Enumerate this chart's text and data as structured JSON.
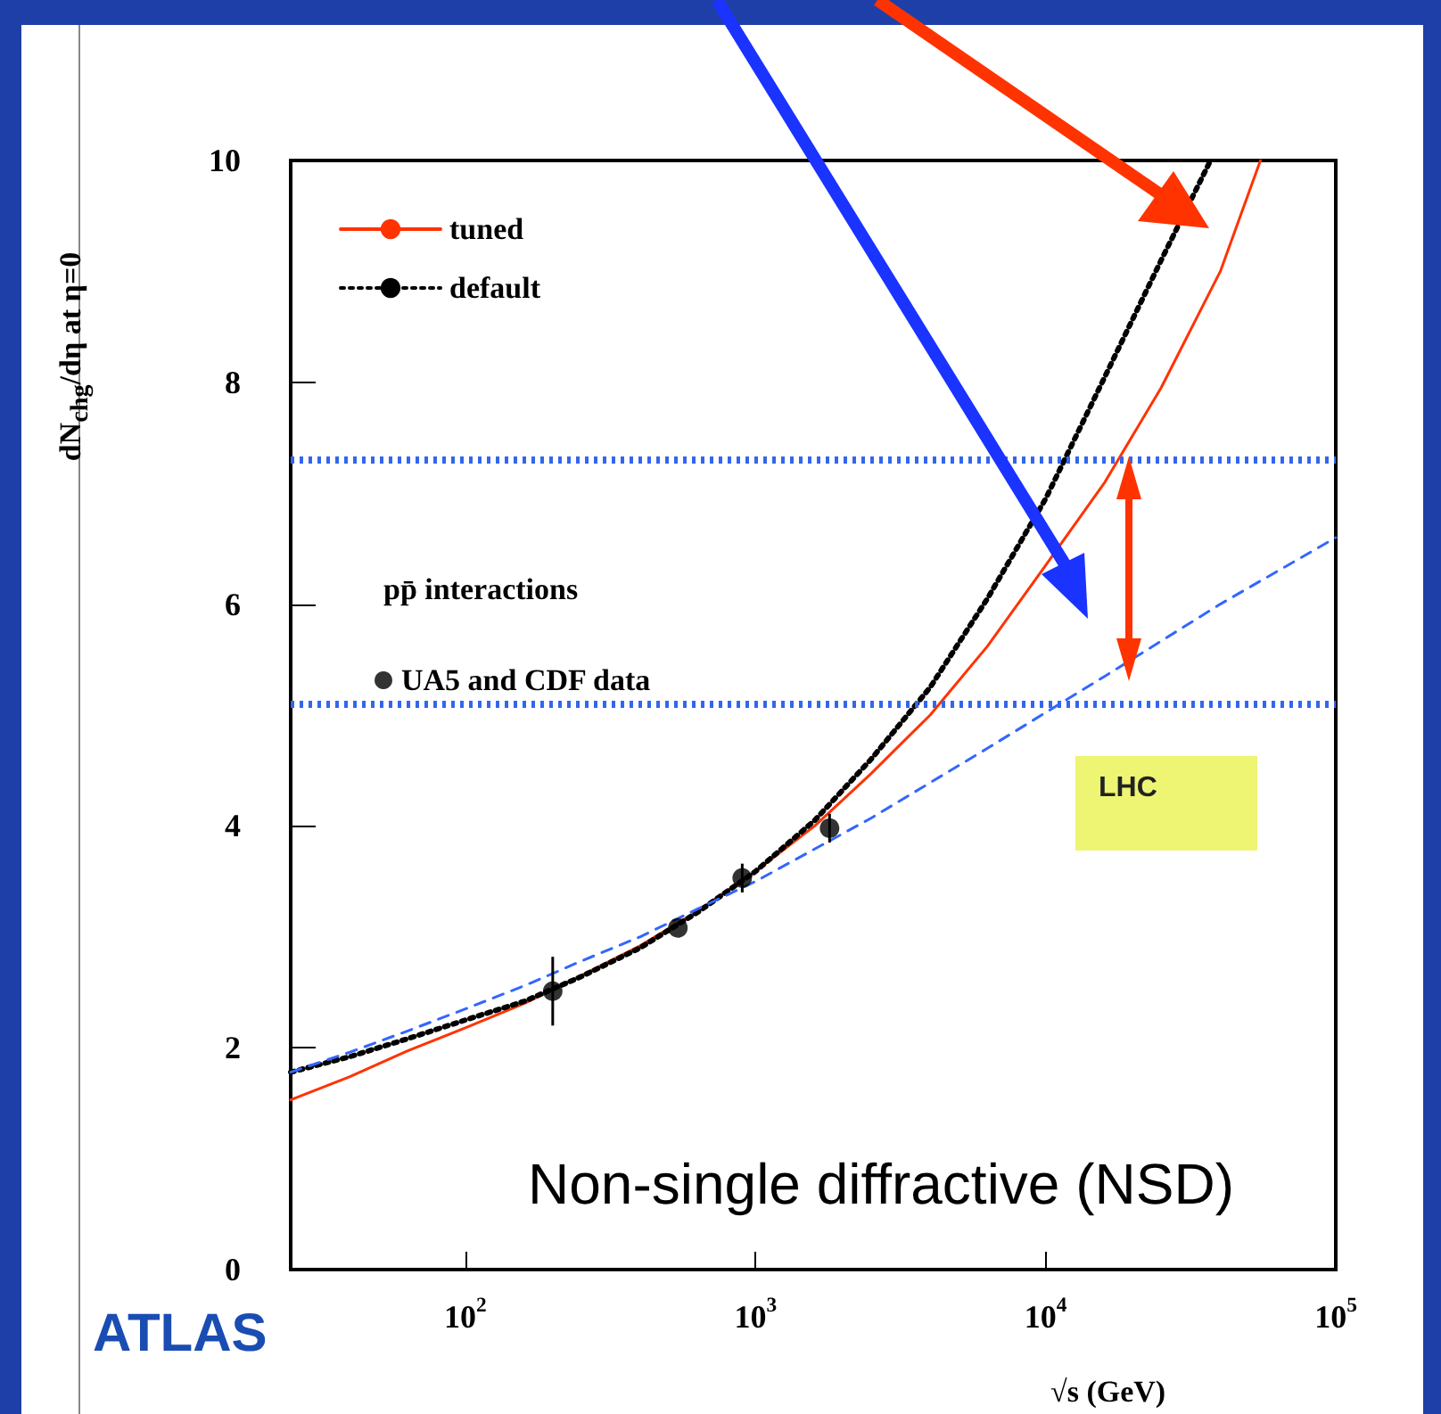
{
  "chart_data": {
    "type": "line",
    "xlabel": "√s (GeV)",
    "ylabel": "dN$_{chg}$/dη at η=0",
    "xlim": [
      25,
      100000
    ],
    "xticks": [
      {
        "value": 100,
        "label": "10$^{2}$"
      },
      {
        "value": 1000,
        "label": "10$^{3}$"
      },
      {
        "value": 10000,
        "label": "10$^{4}$"
      },
      {
        "value": 100000,
        "label": "10$^{5}$"
      }
    ],
    "ylim": [
      0,
      10
    ],
    "yticks": [
      0,
      2,
      4,
      6,
      8,
      10
    ],
    "log": "x",
    "grid": false,
    "legend": "top left",
    "series": [
      {
        "name": "tuned",
        "color": "#ff3300",
        "line_style": "solid",
        "marker": "none",
        "x": [
          25,
          40,
          63,
          100,
          160,
          250,
          400,
          630,
          1000,
          1600,
          2500,
          4000,
          6300,
          10000,
          16000,
          25000,
          40000,
          55000
        ],
        "values": [
          1.53,
          1.74,
          1.97,
          2.18,
          2.4,
          2.65,
          2.92,
          3.23,
          3.59,
          4.0,
          4.47,
          5.0,
          5.62,
          6.35,
          7.1,
          7.95,
          9.0,
          10
        ]
      },
      {
        "name": "default",
        "color": "#000000",
        "line_style": "dotted",
        "marker": "none",
        "x": [
          25,
          40,
          63,
          100,
          160,
          250,
          400,
          630,
          1000,
          1600,
          2500,
          4000,
          6300,
          10000,
          16000,
          25000,
          37000
        ],
        "values": [
          1.78,
          1.92,
          2.08,
          2.25,
          2.42,
          2.64,
          2.9,
          3.22,
          3.59,
          4.05,
          4.6,
          5.25,
          6.05,
          6.95,
          8.05,
          9.1,
          10
        ]
      },
      {
        "color": "#3366ff",
        "line_style": "dashed",
        "marker": "none",
        "x": [
          25,
          40,
          63,
          100,
          160,
          250,
          400,
          630,
          1000,
          2500,
          6300,
          16000,
          40000,
          100000
        ],
        "values": [
          1.78,
          1.96,
          2.15,
          2.35,
          2.56,
          2.78,
          3.0,
          3.25,
          3.5,
          4.07,
          4.7,
          5.35,
          6.0,
          6.6
        ]
      },
      {
        "name": "UA5 and CDF data",
        "type": "scatter",
        "color": "#000000",
        "marker": "circle",
        "x": [
          200,
          540,
          900,
          1800
        ],
        "values": [
          2.51,
          3.08,
          3.53,
          3.98
        ],
        "errors": [
          0.31,
          null,
          0.13,
          0.13
        ]
      }
    ],
    "ref_lines": [
      {
        "axis": "y",
        "value": 7.3,
        "color": "#3366ee",
        "line_style": "dotted"
      },
      {
        "axis": "y",
        "value": 5.1,
        "color": "#3366ee",
        "line_style": "dotted"
      }
    ],
    "annotations": [
      "pp̄ interactions",
      "Non-single diffractive (NSD)",
      "ATLAS",
      "LHC"
    ]
  }
}
